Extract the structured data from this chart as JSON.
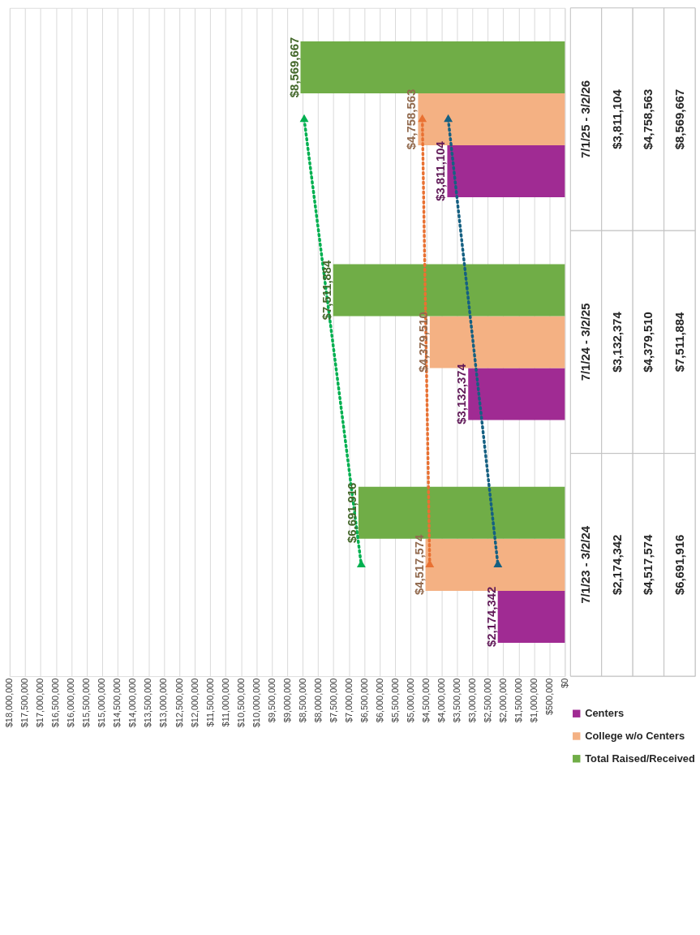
{
  "chart_data": {
    "type": "bar",
    "orientation": "horizontal",
    "categories": [
      "7/1/25 - 3/2/26",
      "7/1/24 - 3/2/25",
      "7/1/23 - 3/2/24"
    ],
    "series": [
      {
        "name": "Centers",
        "color": "#a02b93",
        "values": [
          3811104,
          3132374,
          2174342
        ],
        "value_labels": [
          "$3,811,104",
          "$3,132,374",
          "$2,174,342"
        ]
      },
      {
        "name": "College w/o Centers",
        "color": "#f4b183",
        "values": [
          4758563,
          4379510,
          4517574
        ],
        "value_labels": [
          "$4,758,563",
          "$4,379,510",
          "$4,517,574"
        ]
      },
      {
        "name": "Total Raised/Received",
        "color": "#70ad47",
        "values": [
          8569667,
          7511884,
          6691916
        ],
        "value_labels": [
          "$8,569,667",
          "$7,511,884",
          "$6,691,916"
        ]
      },
      {
        "type": "line",
        "color": "#156082",
        "x": [
          "7/1/25 - 3/2/26",
          "7/1/23 - 3/2/24"
        ],
        "values": [
          3780000,
          2170000
        ]
      },
      {
        "type": "line",
        "color": "#e97132",
        "x": [
          "7/1/25 - 3/2/26",
          "7/1/23 - 3/2/24"
        ],
        "values": [
          4620000,
          4380000
        ]
      },
      {
        "type": "line",
        "color": "#00b050",
        "x": [
          "7/1/25 - 3/2/26",
          "7/1/23 - 3/2/24"
        ],
        "values": [
          8450000,
          6600000
        ]
      }
    ],
    "xlim": [
      18000000,
      0
    ],
    "xticks": [
      {
        "value": 0,
        "label": "$0"
      },
      {
        "value": 500000,
        "label": "$500,000"
      },
      {
        "value": 1000000,
        "label": "$1,000,000"
      },
      {
        "value": 1500000,
        "label": "$1,500,000"
      },
      {
        "value": 2000000,
        "label": "$2,000,000"
      },
      {
        "value": 2500000,
        "label": "$2,500,000"
      },
      {
        "value": 3000000,
        "label": "$3,000,000"
      },
      {
        "value": 3500000,
        "label": "$3,500,000"
      },
      {
        "value": 4000000,
        "label": "$4,000,000"
      },
      {
        "value": 4500000,
        "label": "$4,500,000"
      },
      {
        "value": 5000000,
        "label": "$5,000,000"
      },
      {
        "value": 5500000,
        "label": "$5,500,000"
      },
      {
        "value": 6000000,
        "label": "$6,000,000"
      },
      {
        "value": 6500000,
        "label": "$6,500,000"
      },
      {
        "value": 7000000,
        "label": "$7,000,000"
      },
      {
        "value": 7500000,
        "label": "$7,500,000"
      },
      {
        "value": 8000000,
        "label": "$8,000,000"
      },
      {
        "value": 8500000,
        "label": "$8,500,000"
      },
      {
        "value": 9000000,
        "label": "$9,000,000"
      },
      {
        "value": 9500000,
        "label": "$9,500,000"
      },
      {
        "value": 10000000,
        "label": "$10,000,000"
      },
      {
        "value": 10500000,
        "label": "$10,500,000"
      },
      {
        "value": 11000000,
        "label": "$11,000,000"
      },
      {
        "value": 11500000,
        "label": "$11,500,000"
      },
      {
        "value": 12000000,
        "label": "$12,000,000"
      },
      {
        "value": 12500000,
        "label": "$12,500,000"
      },
      {
        "value": 13000000,
        "label": "$13,000,000"
      },
      {
        "value": 13500000,
        "label": "$13,500,000"
      },
      {
        "value": 14000000,
        "label": "$14,000,000"
      },
      {
        "value": 14500000,
        "label": "$14,500,000"
      },
      {
        "value": 15000000,
        "label": "$15,000,000"
      },
      {
        "value": 15500000,
        "label": "$15,500,000"
      },
      {
        "value": 16000000,
        "label": "$16,000,000"
      },
      {
        "value": 16500000,
        "label": "$16,500,000"
      },
      {
        "value": 17000000,
        "label": "$17,000,000"
      },
      {
        "value": 17500000,
        "label": "$17,500,000"
      },
      {
        "value": 18000000,
        "label": "$18,000,000"
      }
    ],
    "grid": "x",
    "legend": "bottom",
    "marker": "triangle",
    "line_style": "dotted"
  }
}
